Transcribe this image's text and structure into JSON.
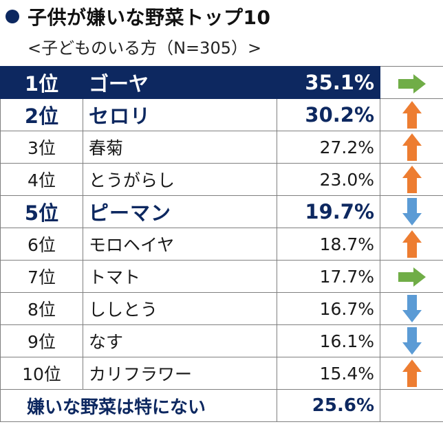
{
  "header": {
    "title": "子供が嫌いな野菜トップ10",
    "subtitle": "<子どものいる方（N=305）>"
  },
  "chart_data": {
    "type": "table",
    "title": "子供が嫌いな野菜トップ10",
    "subtitle": "<子どものいる方（N=305）>",
    "rows": [
      {
        "rank": "1位",
        "name": "ゴーヤ",
        "value": "35.1%",
        "trend": "right-arrow-icon"
      },
      {
        "rank": "2位",
        "name": "セロリ",
        "value": "30.2%",
        "trend": "up-arrow-icon"
      },
      {
        "rank": "3位",
        "name": "春菊",
        "value": "27.2%",
        "trend": "up-arrow-icon"
      },
      {
        "rank": "4位",
        "name": "とうがらし",
        "value": "23.0%",
        "trend": "up-arrow-icon"
      },
      {
        "rank": "5位",
        "name": "ピーマン",
        "value": "19.7%",
        "trend": "down-arrow-icon"
      },
      {
        "rank": "6位",
        "name": "モロヘイヤ",
        "value": "18.7%",
        "trend": "up-arrow-icon"
      },
      {
        "rank": "7位",
        "name": "トマト",
        "value": "17.7%",
        "trend": "right-arrow-icon"
      },
      {
        "rank": "8位",
        "name": "ししとう",
        "value": "16.7%",
        "trend": "down-arrow-icon"
      },
      {
        "rank": "9位",
        "name": "なす",
        "value": "16.1%",
        "trend": "down-arrow-icon"
      },
      {
        "rank": "10位",
        "name": "カリフラワー",
        "value": "15.4%",
        "trend": "up-arrow-icon"
      }
    ],
    "footer": {
      "label": "嫌いな野菜は特にない",
      "value": "25.6%"
    },
    "colors": {
      "navy": "#0d2860",
      "up": "#ed7d31",
      "down": "#5b9bd5",
      "same": "#70ad47"
    }
  }
}
